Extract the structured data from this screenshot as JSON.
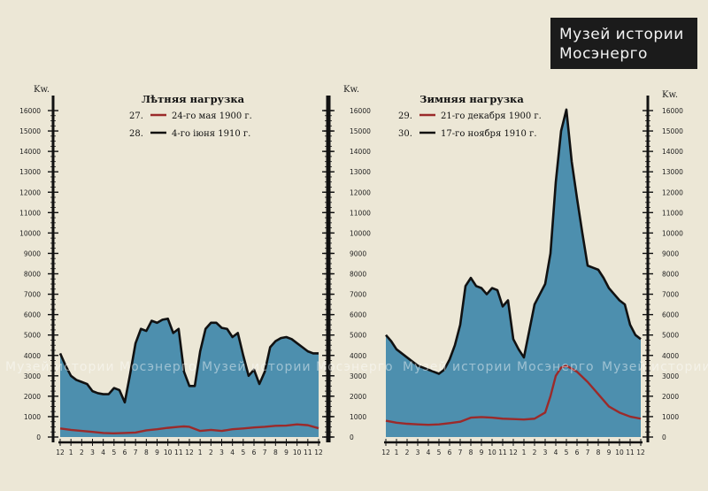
{
  "watermark": {
    "badge_line1": "Музей истории",
    "badge_line2": "Мосэнерго",
    "strip_text": "Музей истории Мосэнерго"
  },
  "chart_data": [
    {
      "type": "area",
      "title": "Лѣтняя нагрузка",
      "unit_label": "Kw.",
      "ylim": [
        0,
        16000
      ],
      "y_ticks": [
        0,
        1000,
        2000,
        3000,
        4000,
        5000,
        6000,
        7000,
        8000,
        9000,
        10000,
        11000,
        12000,
        13000,
        14000,
        15000,
        16000
      ],
      "x_tick_labels": [
        "12",
        "1",
        "2",
        "3",
        "4",
        "5",
        "6",
        "7",
        "8",
        "9",
        "10",
        "11",
        "12",
        "1",
        "2",
        "3",
        "4",
        "5",
        "6",
        "7",
        "8",
        "9",
        "10",
        "11",
        "12"
      ],
      "x_range": [
        0,
        24
      ],
      "series": [
        {
          "number": "27.",
          "name": "24-го мая 1900 г.",
          "color": "#9b2a2a",
          "x": [
            0,
            1,
            2,
            3,
            4,
            5,
            6,
            7,
            8,
            9,
            10,
            11,
            11.5,
            12,
            13,
            14,
            15,
            16,
            17,
            18,
            19,
            20,
            21,
            22,
            23,
            24
          ],
          "y": [
            420,
            350,
            300,
            250,
            200,
            180,
            200,
            220,
            330,
            380,
            450,
            500,
            520,
            500,
            300,
            350,
            300,
            380,
            420,
            470,
            500,
            550,
            560,
            620,
            580,
            430
          ]
        },
        {
          "number": "28.",
          "name": "4-го іюня 1910 г.",
          "color": "#111111",
          "x": [
            0,
            0.5,
            1,
            1.5,
            2,
            2.5,
            3,
            3.5,
            4,
            4.5,
            5,
            5.5,
            6,
            6.5,
            7,
            7.5,
            8,
            8.5,
            9,
            9.5,
            10,
            10.5,
            11,
            11.5,
            12,
            12.5,
            13,
            13.5,
            14,
            14.5,
            15,
            15.5,
            16,
            16.5,
            17,
            17.5,
            18,
            18.5,
            19,
            19.5,
            20,
            20.5,
            21,
            21.5,
            22,
            22.5,
            23,
            23.5,
            24
          ],
          "y": [
            4100,
            3500,
            3000,
            2800,
            2700,
            2600,
            2250,
            2150,
            2100,
            2100,
            2400,
            2300,
            1700,
            3100,
            4600,
            5300,
            5200,
            5700,
            5600,
            5750,
            5800,
            5100,
            5300,
            3200,
            2500,
            2500,
            4200,
            5300,
            5600,
            5600,
            5350,
            5300,
            4900,
            5100,
            4000,
            3000,
            3300,
            2600,
            3200,
            4400,
            4700,
            4850,
            4900,
            4800,
            4600,
            4400,
            4200,
            4100,
            4100
          ]
        }
      ]
    },
    {
      "type": "area",
      "title": "Зимняя нагрузка",
      "unit_label": "Kw.",
      "ylim": [
        0,
        16000
      ],
      "y_ticks": [
        0,
        1000,
        2000,
        3000,
        4000,
        5000,
        6000,
        7000,
        8000,
        9000,
        10000,
        11000,
        12000,
        13000,
        14000,
        15000,
        16000
      ],
      "x_tick_labels": [
        "12",
        "1",
        "2",
        "3",
        "4",
        "5",
        "6",
        "7",
        "8",
        "9",
        "10",
        "11",
        "12",
        "1",
        "2",
        "3",
        "4",
        "5",
        "6",
        "7",
        "8",
        "9",
        "10",
        "11",
        "12"
      ],
      "x_range": [
        0,
        24
      ],
      "series": [
        {
          "number": "29.",
          "name": "21-го декабря 1900 г.",
          "color": "#9b2a2a",
          "x": [
            0,
            1,
            2,
            3,
            4,
            5,
            6,
            7,
            8,
            9,
            10,
            11,
            12,
            13,
            14,
            15,
            15.5,
            16,
            16.5,
            17,
            18,
            19,
            20,
            21,
            22,
            23,
            24
          ],
          "y": [
            800,
            700,
            650,
            620,
            600,
            620,
            680,
            750,
            950,
            980,
            950,
            900,
            880,
            860,
            900,
            1200,
            2000,
            3000,
            3400,
            3500,
            3200,
            2700,
            2100,
            1500,
            1200,
            1000,
            900
          ]
        },
        {
          "number": "30.",
          "name": "17-го ноября 1910 г.",
          "color": "#111111",
          "x": [
            0,
            0.5,
            1,
            1.5,
            2,
            2.5,
            3,
            3.5,
            4,
            4.5,
            5,
            5.5,
            6,
            6.5,
            7,
            7.5,
            8,
            8.5,
            9,
            9.5,
            10,
            10.5,
            11,
            11.5,
            12,
            12.5,
            13,
            13.5,
            14,
            14.5,
            15,
            15.5,
            16,
            16.5,
            17,
            17.5,
            18,
            18.5,
            19,
            19.5,
            20,
            20.5,
            21,
            21.5,
            22,
            22.5,
            23,
            23.5,
            24
          ],
          "y": [
            5000,
            4700,
            4300,
            4100,
            3900,
            3700,
            3500,
            3400,
            3300,
            3200,
            3100,
            3300,
            3800,
            4500,
            5500,
            7400,
            7800,
            7400,
            7300,
            7000,
            7300,
            7200,
            6400,
            6700,
            4800,
            4300,
            3900,
            5200,
            6500,
            7000,
            7500,
            9000,
            12500,
            15000,
            16050,
            13500,
            11700,
            10000,
            8400,
            8300,
            8200,
            7800,
            7300,
            7000,
            6700,
            6500,
            5500,
            5000,
            4800
          ]
        }
      ]
    }
  ]
}
